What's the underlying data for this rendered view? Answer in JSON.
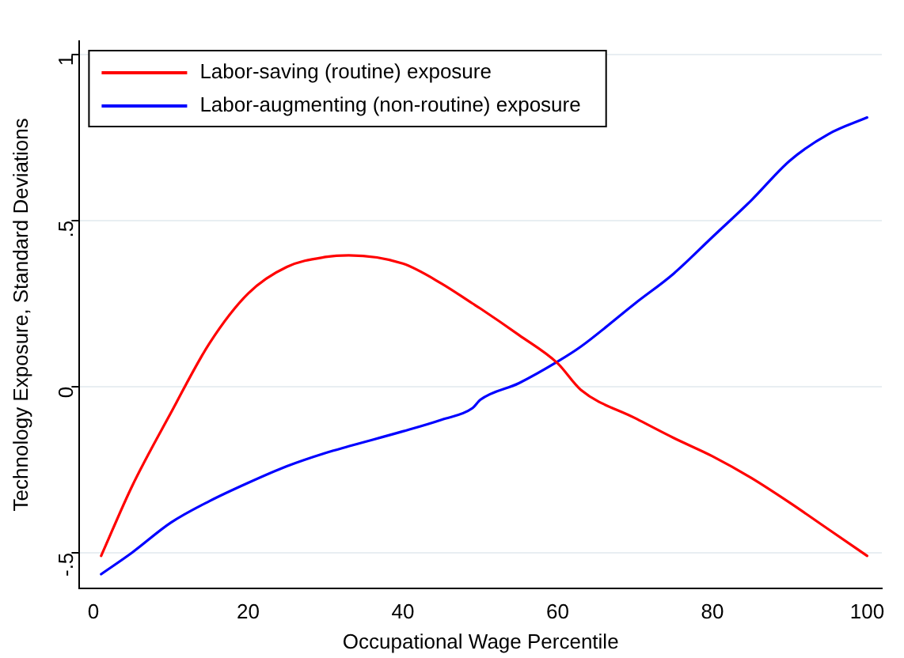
{
  "chart_data": {
    "type": "line",
    "xlabel": "Occupational Wage Percentile",
    "ylabel": "Technology Exposure, Standard Deviations",
    "x": [
      1,
      5,
      10,
      15,
      20,
      25,
      30,
      33,
      40,
      45,
      49,
      50,
      55,
      60,
      63,
      70,
      75,
      80,
      85,
      90,
      95,
      100
    ],
    "series": [
      {
        "name": "Labor-saving (routine) exposure",
        "color": "#ff0000",
        "values": [
          -0.51,
          -0.3,
          -0.08,
          0.13,
          0.28,
          0.36,
          0.39,
          0.395,
          0.37,
          0.31,
          0.25,
          0.235,
          0.155,
          0.07,
          -0.01,
          -0.095,
          -0.155,
          -0.21,
          -0.275,
          -0.35,
          -0.43,
          -0.51
        ]
      },
      {
        "name": "Labor-augmenting (non-routine) exposure",
        "color": "#0000ff",
        "values": [
          -0.565,
          -0.5,
          -0.41,
          -0.345,
          -0.29,
          -0.24,
          -0.2,
          -0.18,
          -0.135,
          -0.1,
          -0.065,
          -0.04,
          0.01,
          0.075,
          0.12,
          0.25,
          0.34,
          0.45,
          0.56,
          0.68,
          0.76,
          0.81
        ]
      }
    ],
    "xlim": [
      -1.8,
      101.9
    ],
    "xticks": [
      0,
      20,
      40,
      60,
      80,
      100
    ],
    "ylim": [
      -0.607,
      1.04
    ],
    "yticks": [
      {
        "value": -0.5,
        "label": "-.5"
      },
      0,
      {
        "value": 0.5,
        "label": ".5"
      },
      1
    ],
    "grid": "y",
    "legend": "top left",
    "marker": "none",
    "line_style": "solid"
  }
}
